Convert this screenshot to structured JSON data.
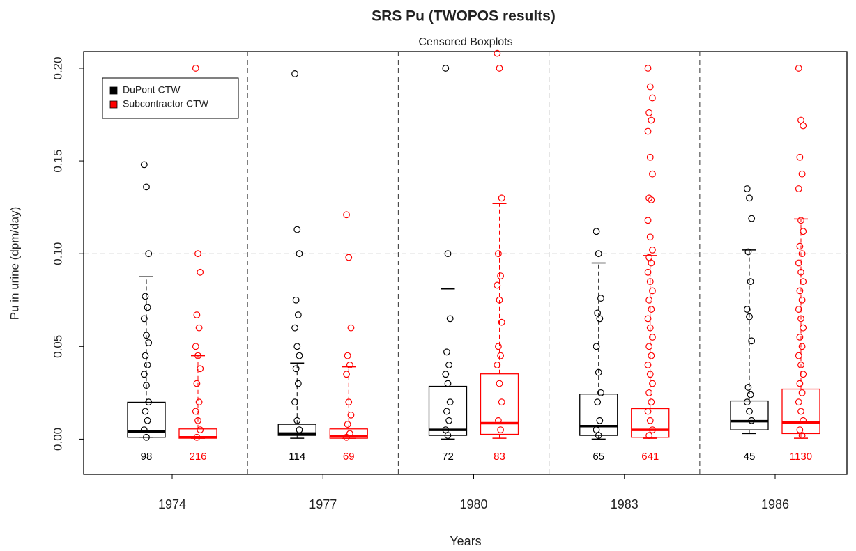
{
  "chart_data": {
    "type": "box",
    "title": "SRS Pu (TWOPOS results)",
    "subtitle": "Censored Boxplots",
    "x_label": "Years",
    "y_label": "Pu in urine (dpm/day)",
    "categories": [
      "1974",
      "1977",
      "1980",
      "1983",
      "1986"
    ],
    "ylim": [
      -0.019,
      0.209
    ],
    "yticks": [
      {
        "value": 0,
        "label": "0.00"
      },
      {
        "value": 0.05,
        "label": "0.05"
      },
      {
        "value": 0.1,
        "label": "0.10"
      },
      {
        "value": 0.15,
        "label": "0.15"
      },
      {
        "value": 0.2,
        "label": "0.20"
      }
    ],
    "reference_line": 0.1,
    "legend": "top-left",
    "series": [
      {
        "name": "DuPont CTW",
        "color": "#000000",
        "whisker_low": [
          0.001,
          0.0005,
          0,
          0,
          0.003
        ],
        "q1": [
          0.001,
          0.002,
          0.002,
          0.002,
          0.005
        ],
        "median": [
          0.004,
          0.003,
          0.005,
          0.007,
          0.0097
        ],
        "q3": [
          0.0199,
          0.008,
          0.0285,
          0.0243,
          0.0206
        ],
        "whisker_high": [
          0.0876,
          0.041,
          0.081,
          0.095,
          0.102
        ],
        "n": [
          98,
          114,
          72,
          65,
          45
        ],
        "points": [
          [
            0.148,
            0.136,
            0.1,
            0.077,
            0.071,
            0.065,
            0.056,
            0.052,
            0.045,
            0.04,
            0.035,
            0.029,
            0.02,
            0.015,
            0.01,
            0.005,
            0.001
          ],
          [
            0.197,
            0.113,
            0.1,
            0.075,
            0.067,
            0.06,
            0.05,
            0.045,
            0.038,
            0.03,
            0.02,
            0.01,
            0.005
          ],
          [
            0.2,
            0.1,
            0.065,
            0.047,
            0.04,
            0.035,
            0.03,
            0.02,
            0.015,
            0.01,
            0.005,
            0.002
          ],
          [
            0.112,
            0.1,
            0.076,
            0.068,
            0.065,
            0.05,
            0.036,
            0.025,
            0.02,
            0.01,
            0.005,
            0.002
          ],
          [
            0.135,
            0.13,
            0.119,
            0.101,
            0.085,
            0.07,
            0.066,
            0.053,
            0.028,
            0.024,
            0.02,
            0.015,
            0.01
          ]
        ]
      },
      {
        "name": "Subcontractor CTW",
        "color": "#ff0000",
        "whisker_low": [
          0.0005,
          0.0005,
          0.0005,
          0.0005,
          0.0005
        ],
        "q1": [
          0.0005,
          0.0005,
          0.0026,
          0.001,
          0.003
        ],
        "median": [
          0.001,
          0.0015,
          0.0086,
          0.005,
          0.009
        ],
        "q3": [
          0.0055,
          0.0055,
          0.0352,
          0.0165,
          0.027
        ],
        "whisker_high": [
          0.045,
          0.039,
          0.127,
          0.099,
          0.1187
        ],
        "n": [
          216,
          69,
          83,
          641,
          1130
        ],
        "points": [
          [
            0.2,
            0.1,
            0.09,
            0.067,
            0.06,
            0.05,
            0.045,
            0.038,
            0.03,
            0.02,
            0.015,
            0.01,
            0.005,
            0.001
          ],
          [
            0.121,
            0.098,
            0.06,
            0.045,
            0.04,
            0.035,
            0.02,
            0.013,
            0.008,
            0.003,
            0.001
          ],
          [
            0.208,
            0.2,
            0.13,
            0.1,
            0.088,
            0.083,
            0.075,
            0.063,
            0.05,
            0.045,
            0.04,
            0.03,
            0.02,
            0.01,
            0.005
          ],
          [
            0.2,
            0.19,
            0.184,
            0.176,
            0.172,
            0.166,
            0.152,
            0.143,
            0.13,
            0.129,
            0.118,
            0.109,
            0.102,
            0.098,
            0.095,
            0.09,
            0.085,
            0.08,
            0.075,
            0.07,
            0.065,
            0.06,
            0.055,
            0.05,
            0.045,
            0.04,
            0.035,
            0.03,
            0.025,
            0.02,
            0.015,
            0.01,
            0.005,
            0.002
          ],
          [
            0.2,
            0.172,
            0.169,
            0.152,
            0.143,
            0.135,
            0.118,
            0.112,
            0.104,
            0.1,
            0.095,
            0.09,
            0.085,
            0.08,
            0.075,
            0.07,
            0.065,
            0.06,
            0.055,
            0.05,
            0.045,
            0.04,
            0.035,
            0.03,
            0.025,
            0.02,
            0.015,
            0.01,
            0.005,
            0.002
          ]
        ]
      }
    ]
  }
}
